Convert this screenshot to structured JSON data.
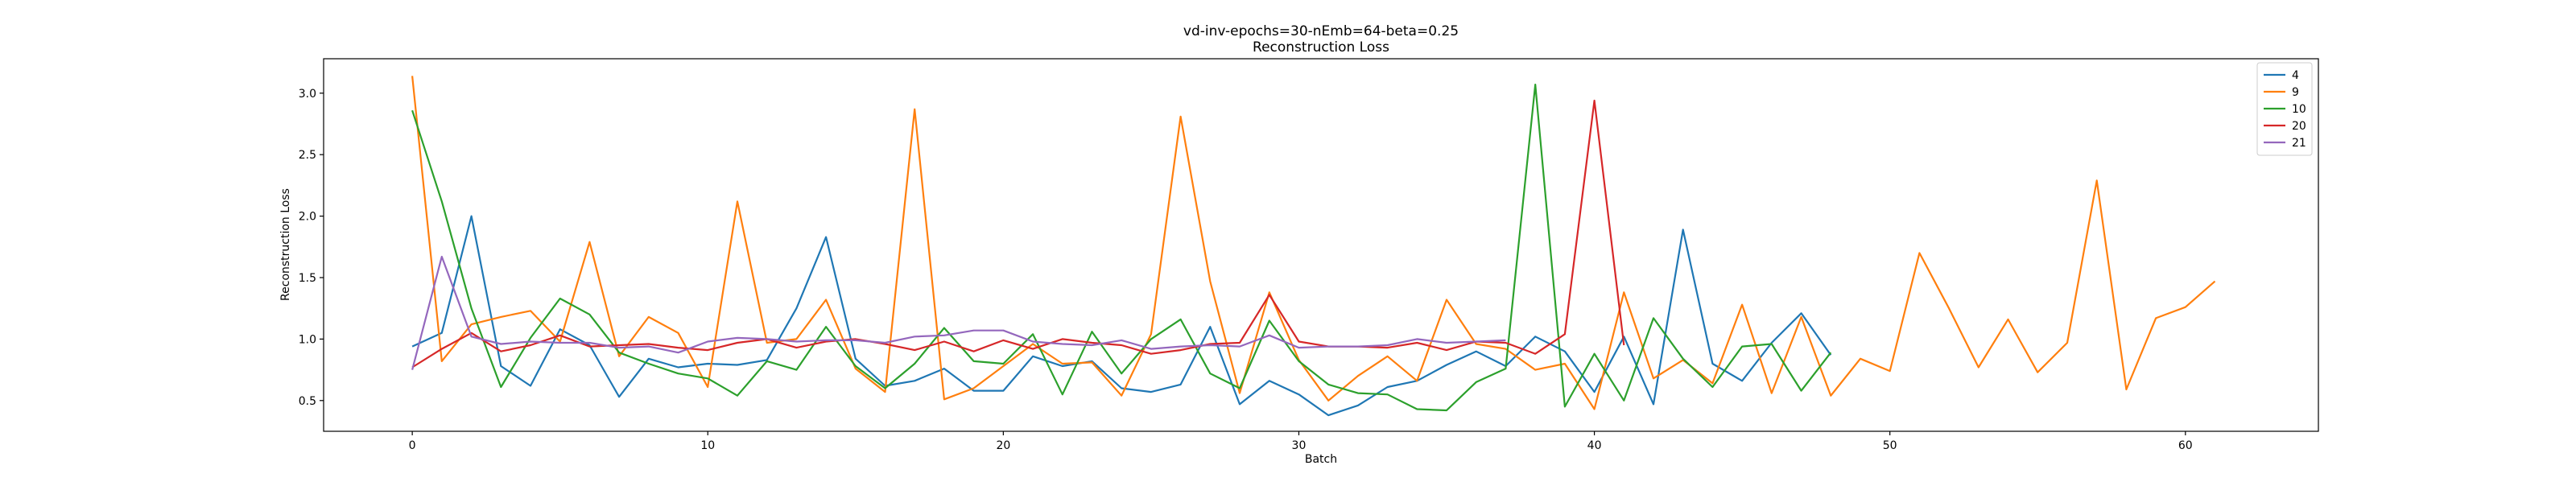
{
  "chart_data": {
    "type": "line",
    "title": "vd-inv-epochs=30-nEmb=64-beta=0.25",
    "subtitle": "Reconstruction Loss",
    "xlabel": "Batch",
    "ylabel": "Reconstruction Loss",
    "xlim": [
      -3,
      64.5
    ],
    "ylim": [
      0.25,
      3.28
    ],
    "xticks": [
      "0",
      "10",
      "20",
      "30",
      "40",
      "50",
      "60"
    ],
    "yticks": [
      "0.5",
      "1.0",
      "1.5",
      "2.0",
      "2.5",
      "3.0"
    ],
    "grid": false,
    "legend_position": "top-right",
    "series": [
      {
        "name": "4",
        "color": "#1f77b4",
        "values": [
          0.94,
          1.05,
          2.0,
          0.78,
          0.62,
          1.08,
          0.95,
          0.53,
          0.84,
          0.77,
          0.8,
          0.79,
          0.83,
          1.25,
          1.83,
          0.84,
          0.62,
          0.66,
          0.76,
          0.58,
          0.58,
          0.86,
          0.78,
          0.82,
          0.6,
          0.57,
          0.63,
          1.1,
          0.47,
          0.66,
          0.55,
          0.38,
          0.46,
          0.61,
          0.66,
          0.79,
          0.9,
          0.78,
          1.02,
          0.9,
          0.57,
          1.02,
          0.47,
          1.89,
          0.8,
          0.66,
          0.97,
          1.21,
          0.87
        ]
      },
      {
        "name": "9",
        "color": "#ff7f0e",
        "values": [
          3.14,
          0.82,
          1.12,
          1.18,
          1.23,
          0.98,
          1.79,
          0.86,
          1.18,
          1.05,
          0.61,
          2.12,
          0.97,
          1.0,
          1.32,
          0.76,
          0.57,
          2.87,
          0.51,
          0.6,
          0.78,
          0.96,
          0.8,
          0.81,
          0.54,
          1.04,
          2.81,
          1.47,
          0.56,
          1.38,
          0.83,
          0.5,
          0.7,
          0.86,
          0.66,
          1.32,
          0.96,
          0.92,
          0.75,
          0.8,
          0.43,
          1.38,
          0.68,
          0.83,
          0.64,
          1.28,
          0.56,
          1.18,
          0.54,
          0.84,
          0.74,
          1.7,
          1.25,
          0.77,
          1.16,
          0.73,
          0.97,
          2.29,
          0.59,
          1.17,
          1.26,
          1.47
        ]
      },
      {
        "name": "10",
        "color": "#2ca02c",
        "values": [
          2.86,
          2.12,
          1.25,
          0.61,
          1.01,
          1.33,
          1.2,
          0.89,
          0.8,
          0.72,
          0.68,
          0.54,
          0.82,
          0.75,
          1.1,
          0.78,
          0.6,
          0.8,
          1.09,
          0.82,
          0.8,
          1.04,
          0.55,
          1.06,
          0.72,
          1.0,
          1.16,
          0.72,
          0.6,
          1.15,
          0.82,
          0.63,
          0.56,
          0.55,
          0.43,
          0.42,
          0.65,
          0.76,
          3.07,
          0.45,
          0.88,
          0.5,
          1.17,
          0.84,
          0.61,
          0.94,
          0.96,
          0.58,
          0.89
        ]
      },
      {
        "name": "20",
        "color": "#d62728",
        "values": [
          0.77,
          0.92,
          1.05,
          0.9,
          0.95,
          1.03,
          0.94,
          0.95,
          0.96,
          0.93,
          0.91,
          0.97,
          1.0,
          0.93,
          0.98,
          1.0,
          0.96,
          0.91,
          0.98,
          0.9,
          0.99,
          0.92,
          1.0,
          0.97,
          0.95,
          0.88,
          0.91,
          0.96,
          0.97,
          1.36,
          0.98,
          0.94,
          0.94,
          0.93,
          0.97,
          0.91,
          0.98,
          0.97,
          0.88,
          1.04,
          2.94,
          0.95
        ]
      },
      {
        "name": "21",
        "color": "#9467bd",
        "values": [
          0.75,
          1.67,
          1.02,
          0.96,
          0.98,
          0.97,
          0.97,
          0.93,
          0.94,
          0.89,
          0.98,
          1.01,
          1.0,
          0.98,
          0.99,
          0.99,
          0.97,
          1.02,
          1.03,
          1.07,
          1.07,
          0.98,
          0.96,
          0.95,
          0.99,
          0.92,
          0.94,
          0.95,
          0.94,
          1.03,
          0.93,
          0.94,
          0.94,
          0.95,
          1.0,
          0.97,
          0.98,
          0.99
        ]
      }
    ]
  }
}
